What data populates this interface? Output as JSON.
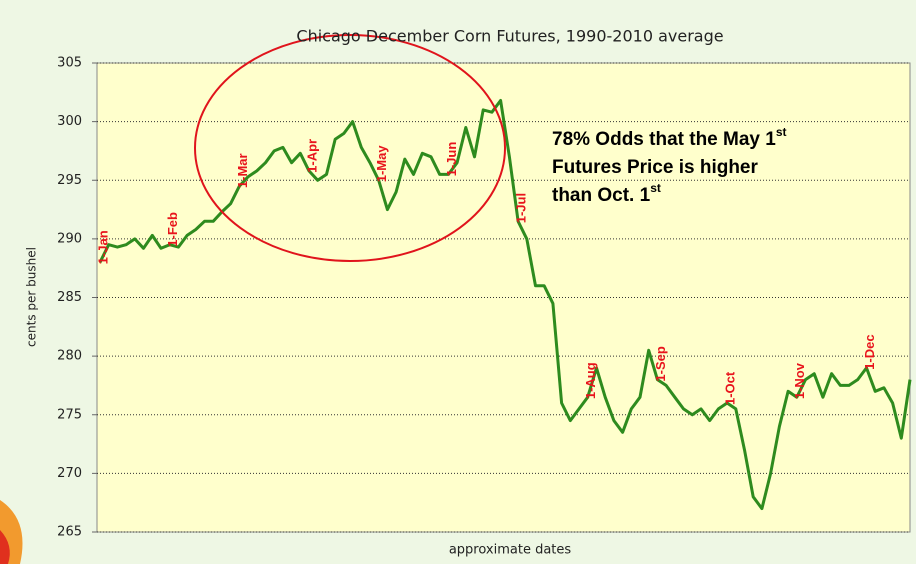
{
  "chart_data": {
    "type": "line",
    "title": "Chicago December Corn Futures, 1990-2010 average",
    "x_label": "approximate dates",
    "y_label": "cents per bushel",
    "categories": [
      "1-Jan",
      null,
      null,
      null,
      null,
      null,
      null,
      null,
      "1-Feb",
      null,
      null,
      null,
      null,
      null,
      null,
      null,
      "1-Mar",
      null,
      null,
      null,
      null,
      null,
      null,
      null,
      "1-Apr",
      null,
      null,
      null,
      null,
      null,
      null,
      null,
      "1-May",
      null,
      null,
      null,
      null,
      null,
      null,
      null,
      "1-Jun",
      null,
      null,
      null,
      null,
      null,
      null,
      null,
      "1-Jul",
      null,
      null,
      null,
      null,
      null,
      null,
      null,
      "1-Aug",
      null,
      null,
      null,
      null,
      null,
      null,
      null,
      "1-Sep",
      null,
      null,
      null,
      null,
      null,
      null,
      null,
      "1-Oct",
      null,
      null,
      null,
      null,
      null,
      null,
      null,
      "1-Nov",
      null,
      null,
      null,
      null,
      null,
      null,
      null,
      "1-Dec",
      null,
      null,
      null,
      null,
      null
    ],
    "series": [
      {
        "name": "December corn futures",
        "color": "#2e8b1e",
        "values": [
          288,
          289.5,
          289.3,
          289.5,
          290,
          289.2,
          290.3,
          289.2,
          289.5,
          289.3,
          290.3,
          290.8,
          291.5,
          291.5,
          292.3,
          293,
          294.5,
          295.3,
          295.8,
          296.5,
          297.5,
          297.8,
          296.5,
          297.3,
          295.8,
          295,
          295.5,
          298.5,
          299,
          300,
          297.8,
          296.5,
          295,
          292.5,
          294,
          296.8,
          295.5,
          297.3,
          297,
          295.5,
          295.5,
          296.5,
          299.5,
          297,
          301,
          300.8,
          301.8,
          297,
          291.5,
          290,
          286,
          286,
          284.5,
          276,
          274.5,
          275.5,
          276.5,
          279,
          276.5,
          274.5,
          273.5,
          275.5,
          276.5,
          280.5,
          278,
          277.5,
          276.5,
          275.5,
          275,
          275.5,
          274.5,
          275.5,
          276,
          275.5,
          272,
          268,
          267,
          270,
          274,
          277,
          276.5,
          278,
          278.5,
          276.5,
          278.5,
          277.5,
          277.5,
          278,
          279,
          277,
          277.3,
          276,
          273,
          278
        ]
      }
    ],
    "ylim": [
      265,
      305
    ],
    "yticks": [
      265,
      270,
      275,
      280,
      285,
      290,
      295,
      300,
      305
    ],
    "grid": true,
    "annotation": [
      {
        "text": "78% Odds that the May 1",
        "sup": "st"
      },
      {
        "text": "Futures Price is higher"
      },
      {
        "text": "than Oct. 1",
        "sup": "st"
      }
    ]
  }
}
